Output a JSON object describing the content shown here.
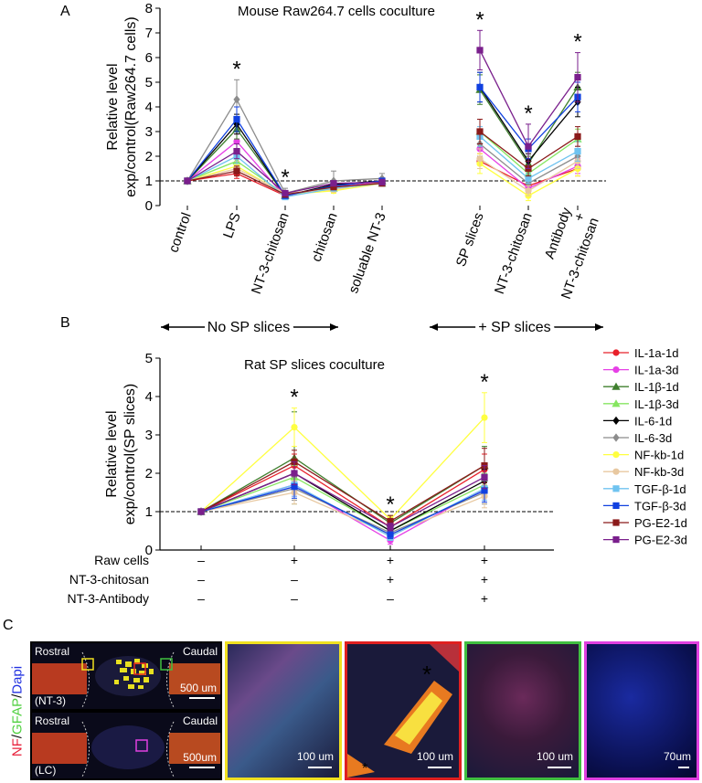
{
  "panel_labels": {
    "a": "A",
    "b": "B",
    "c": "C"
  },
  "colors": {
    "IL-1a-1d": "#e8202a",
    "IL-1a-3d": "#e640e6",
    "IL-1β-1d": "#3f7f2e",
    "IL-1β-3d": "#86e660",
    "IL-6-1d": "#000000",
    "IL-6-3d": "#8c8c8c",
    "NF-kb-1d": "#ffff40",
    "NF-kb-3d": "#e8c8a0",
    "TGF-β-1d": "#6fc3f0",
    "TGF-β-3d": "#1040e0",
    "PG-E2-1d": "#8b1a1a",
    "PG-E2-3d": "#7a1f8c"
  },
  "chart_data": [
    {
      "type": "line",
      "title": "Mouse Raw264.7 cells coculture",
      "xlabel": "",
      "ylabel": "Relative level exp/control(Raw264.7 cells)",
      "ylabel_lines": [
        "Relative level",
        "exp/control(Raw264.7 cells)"
      ],
      "ylim": [
        0,
        8
      ],
      "yticks": [
        "0",
        "1",
        "2",
        "3",
        "4",
        "5",
        "6",
        "7",
        "8"
      ],
      "reference_line": 1,
      "categories": [
        "control",
        "LPS",
        "NT-3-chitosan",
        "chitosan",
        "soluable NT-3",
        "SP slices",
        "NT-3-chitosan",
        "Antibody + NT-3-chitosan"
      ],
      "category_groups": [
        [
          0,
          1,
          2,
          3,
          4
        ],
        [
          5,
          6,
          7
        ]
      ],
      "last_label_lines": [
        "Antibody",
        "+",
        "NT-3-chitosan"
      ],
      "significance": [
        "",
        "*",
        "*",
        "",
        "",
        "*",
        "*",
        "*"
      ],
      "series": [
        {
          "name": "IL-1a-1d",
          "values": [
            1,
            1.3,
            0.4,
            0.7,
            0.9,
            1.8,
            0.8,
            1.5
          ],
          "errors": [
            0.05,
            0.2,
            0.1,
            0.1,
            0.1,
            0.3,
            0.2,
            0.3
          ]
        },
        {
          "name": "IL-1a-3d",
          "values": [
            1,
            2.6,
            0.35,
            0.75,
            0.95,
            2.3,
            0.7,
            1.6
          ],
          "errors": [
            0.05,
            0.3,
            0.1,
            0.1,
            0.1,
            0.4,
            0.2,
            0.3
          ]
        },
        {
          "name": "IL-1β-1d",
          "values": [
            1,
            3.1,
            0.4,
            0.8,
            1.0,
            4.7,
            1.7,
            4.8
          ],
          "errors": [
            0.05,
            0.4,
            0.1,
            0.1,
            0.1,
            0.6,
            0.3,
            0.6
          ]
        },
        {
          "name": "IL-1β-3d",
          "values": [
            1,
            1.8,
            0.45,
            0.7,
            0.9,
            3.0,
            1.3,
            2.7
          ],
          "errors": [
            0.05,
            0.3,
            0.1,
            0.1,
            0.1,
            0.5,
            0.3,
            0.4
          ]
        },
        {
          "name": "IL-6-1d",
          "values": [
            1,
            3.3,
            0.4,
            0.85,
            1.0,
            4.8,
            1.8,
            4.2
          ],
          "errors": [
            0.05,
            0.4,
            0.1,
            0.1,
            0.1,
            0.6,
            0.3,
            0.6
          ]
        },
        {
          "name": "IL-6-3d",
          "values": [
            1,
            4.3,
            0.5,
            1.0,
            1.1,
            2.5,
            0.9,
            2.0
          ],
          "errors": [
            0.05,
            0.8,
            0.2,
            0.4,
            0.2,
            0.5,
            0.3,
            0.4
          ]
        },
        {
          "name": "NF-kb-1d",
          "values": [
            1,
            1.6,
            0.45,
            0.6,
            0.9,
            1.7,
            0.4,
            1.5
          ],
          "errors": [
            0.05,
            0.3,
            0.1,
            0.1,
            0.1,
            0.4,
            0.2,
            0.3
          ]
        },
        {
          "name": "NF-kb-3d",
          "values": [
            1,
            1.5,
            0.5,
            0.65,
            0.95,
            1.9,
            0.6,
            1.8
          ],
          "errors": [
            0.05,
            0.3,
            0.1,
            0.1,
            0.1,
            0.4,
            0.2,
            0.3
          ]
        },
        {
          "name": "TGF-β-1d",
          "values": [
            1,
            2.0,
            0.35,
            0.7,
            0.9,
            2.8,
            1.1,
            2.2
          ],
          "errors": [
            0.05,
            0.3,
            0.1,
            0.1,
            0.1,
            0.4,
            0.2,
            0.4
          ]
        },
        {
          "name": "TGF-β-3d",
          "values": [
            1,
            3.5,
            0.4,
            0.8,
            1.0,
            4.8,
            2.3,
            4.4
          ],
          "errors": [
            0.05,
            0.5,
            0.1,
            0.1,
            0.1,
            0.6,
            0.4,
            0.6
          ]
        },
        {
          "name": "PG-E2-1d",
          "values": [
            1,
            1.4,
            0.45,
            0.75,
            0.9,
            3.0,
            1.5,
            2.8
          ],
          "errors": [
            0.05,
            0.2,
            0.1,
            0.1,
            0.1,
            0.5,
            0.3,
            0.4
          ]
        },
        {
          "name": "PG-E2-3d",
          "values": [
            1,
            2.2,
            0.5,
            0.9,
            0.95,
            6.3,
            2.4,
            5.2
          ],
          "errors": [
            0.05,
            0.3,
            0.1,
            0.1,
            0.1,
            0.8,
            0.9,
            1.0
          ]
        }
      ]
    },
    {
      "type": "line",
      "title": "Rat SP slices coculture",
      "xlabel": "",
      "ylabel": "Relative level exp/control(SP slices)",
      "ylabel_lines": [
        "Relative level",
        "exp/control(SP slices)"
      ],
      "ylim": [
        0,
        5
      ],
      "yticks": [
        "0",
        "1",
        "2",
        "3",
        "4",
        "5"
      ],
      "reference_line": 1,
      "group_labels": [
        "No SP slices",
        "+ SP slices"
      ],
      "condition_rows": [
        {
          "label": "Raw cells",
          "values": [
            "–",
            "+",
            "+",
            "+"
          ]
        },
        {
          "label": "NT-3-chitosan",
          "values": [
            "–",
            "–",
            "+",
            "+"
          ]
        },
        {
          "label": "NT-3-Antibody",
          "values": [
            "–",
            "–",
            "–",
            "+"
          ]
        }
      ],
      "significance": [
        "",
        "*",
        "*",
        "*"
      ],
      "legend_position": "right",
      "series": [
        {
          "name": "IL-1a-1d",
          "values": [
            1,
            2.2,
            0.6,
            2.1
          ],
          "errors": [
            0.02,
            0.3,
            0.1,
            0.4
          ]
        },
        {
          "name": "IL-1a-3d",
          "values": [
            1,
            1.7,
            0.25,
            1.6
          ],
          "errors": [
            0.02,
            0.3,
            0.1,
            0.3
          ]
        },
        {
          "name": "IL-1β-1d",
          "values": [
            1,
            2.4,
            0.7,
            2.2
          ],
          "errors": [
            0.02,
            1.2,
            0.2,
            0.5
          ]
        },
        {
          "name": "IL-1β-3d",
          "values": [
            1,
            1.9,
            0.5,
            1.7
          ],
          "errors": [
            0.02,
            0.3,
            0.1,
            0.3
          ]
        },
        {
          "name": "IL-6-1d",
          "values": [
            1,
            2.0,
            0.5,
            1.8
          ],
          "errors": [
            0.02,
            0.3,
            0.1,
            0.3
          ]
        },
        {
          "name": "IL-6-3d",
          "values": [
            1,
            1.6,
            0.45,
            1.5
          ],
          "errors": [
            0.02,
            0.3,
            0.1,
            0.3
          ]
        },
        {
          "name": "NF-kb-1d",
          "values": [
            1,
            3.2,
            0.8,
            3.45
          ],
          "errors": [
            0.02,
            0.5,
            0.1,
            0.65
          ]
        },
        {
          "name": "NF-kb-3d",
          "values": [
            1,
            1.5,
            0.4,
            1.4
          ],
          "errors": [
            0.02,
            0.3,
            0.1,
            0.3
          ]
        },
        {
          "name": "TGF-β-1d",
          "values": [
            1,
            1.7,
            0.35,
            1.6
          ],
          "errors": [
            0.02,
            0.3,
            0.1,
            0.3
          ]
        },
        {
          "name": "TGF-β-3d",
          "values": [
            1,
            1.65,
            0.4,
            1.55
          ],
          "errors": [
            0.02,
            0.3,
            0.1,
            0.3
          ]
        },
        {
          "name": "PG-E2-1d",
          "values": [
            1,
            2.3,
            0.75,
            2.2
          ],
          "errors": [
            0.02,
            0.3,
            0.15,
            0.45
          ]
        },
        {
          "name": "PG-E2-3d",
          "values": [
            1,
            2.0,
            0.6,
            1.9
          ],
          "errors": [
            0.02,
            0.3,
            0.1,
            0.3
          ]
        }
      ]
    }
  ],
  "panel_c": {
    "channel_label": {
      "nf": "NF",
      "gfap": "GFAP",
      "dapi": "Dapi",
      "sep": "/"
    },
    "overview_top": {
      "rostral": "Rostral",
      "caudal": "Caudal",
      "group": "(NT-3)",
      "scale": "500 um"
    },
    "overview_bottom": {
      "rostral": "Rostral",
      "caudal": "Caudal",
      "group": "(LC)",
      "scale": "500um"
    },
    "zoom_panels": [
      {
        "scale": "100 um",
        "frame_color": "#f0e020",
        "marker": ""
      },
      {
        "scale": "100 um",
        "frame_color": "#e02020",
        "marker": "*"
      },
      {
        "scale": "100 um",
        "frame_color": "#40c040",
        "marker": ""
      },
      {
        "scale": "70um",
        "frame_color": "#e040e0",
        "marker": ""
      }
    ]
  }
}
